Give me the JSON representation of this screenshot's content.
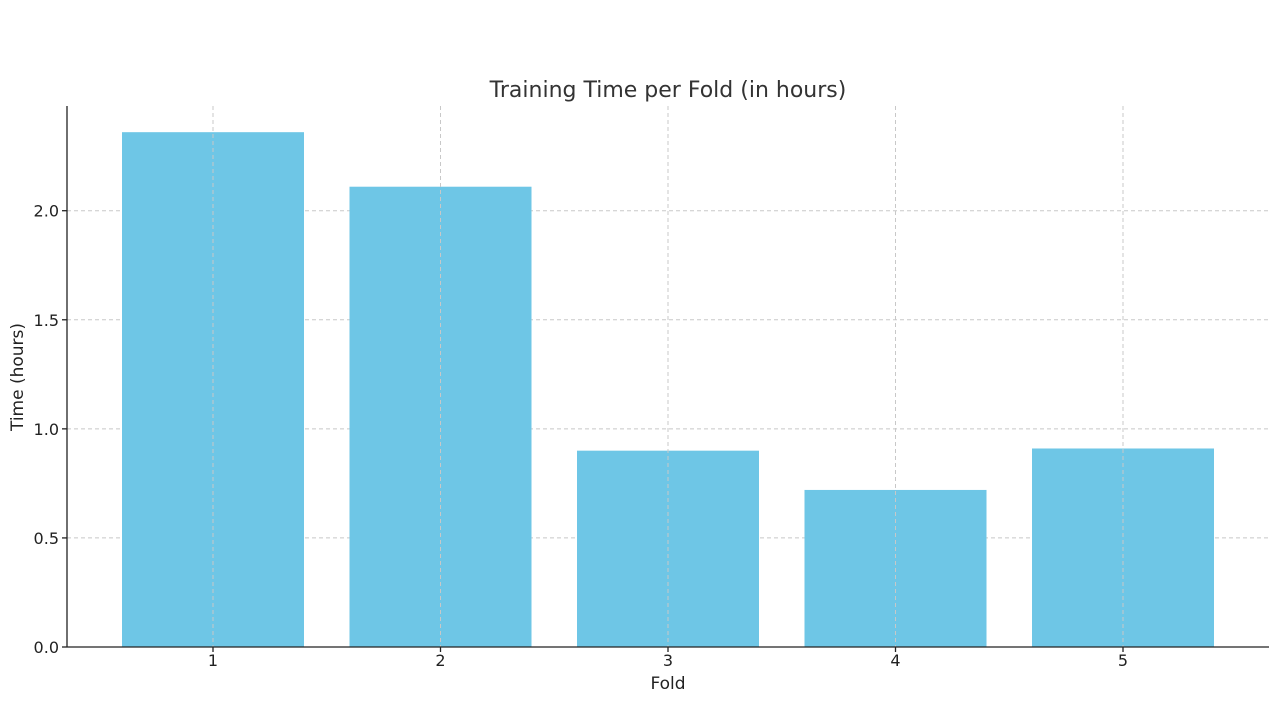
{
  "chart_data": {
    "type": "bar",
    "title": "Training Time per Fold (in hours)",
    "xlabel": "Fold",
    "ylabel": "Time (hours)",
    "categories": [
      "1",
      "2",
      "3",
      "4",
      "5"
    ],
    "values": [
      2.36,
      2.11,
      0.9,
      0.72,
      0.91
    ],
    "ylim": [
      0,
      2.48
    ],
    "yticks": [
      0.0,
      0.5,
      1.0,
      1.5,
      2.0
    ],
    "ytick_labels": [
      "0.0",
      "0.5",
      "1.0",
      "1.5",
      "2.0"
    ],
    "grid": true,
    "bar_color": "#6ec6e6"
  }
}
